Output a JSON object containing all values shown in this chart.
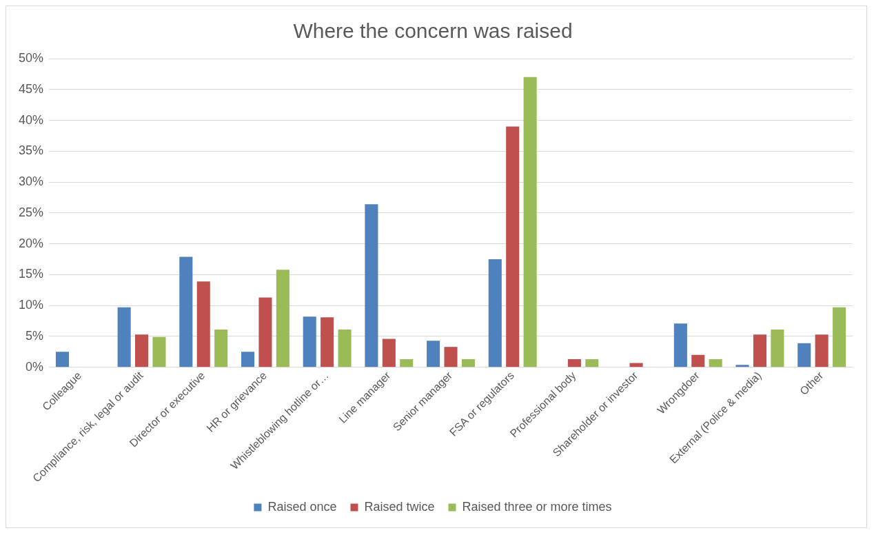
{
  "chart_data": {
    "type": "bar",
    "title": "Where the concern was raised",
    "categories": [
      "Colleague",
      "Compliance, risk, legal or audit",
      "Director or executive",
      "HR or grievance",
      "Whistleblowing hotline or…",
      "Line manager",
      "Senior manager",
      "FSA or regulators",
      "Professional body",
      "Shareholder or investor",
      "Wrongdoer",
      "External (Police & media)",
      "Other"
    ],
    "series": [
      {
        "name": "Raised once",
        "color": "#4f81bd",
        "values": [
          2.5,
          9.7,
          17.9,
          2.5,
          8.2,
          26.4,
          4.3,
          17.5,
          0,
          0,
          7.1,
          0.4,
          3.9
        ]
      },
      {
        "name": "Raised twice",
        "color": "#c0504d",
        "values": [
          0,
          5.3,
          13.9,
          11.3,
          8.1,
          4.6,
          3.3,
          39.0,
          1.3,
          0.7,
          2.0,
          5.3,
          5.3
        ]
      },
      {
        "name": "Raised three or more times",
        "color": "#9bbb59",
        "values": [
          0,
          4.9,
          6.1,
          15.8,
          6.1,
          1.3,
          1.3,
          47.0,
          1.3,
          0,
          1.3,
          6.1,
          9.7
        ]
      }
    ],
    "ylim": [
      0,
      50
    ],
    "yticks": [
      {
        "value": 0,
        "label": "0%"
      },
      {
        "value": 5,
        "label": "5%"
      },
      {
        "value": 10,
        "label": "10%"
      },
      {
        "value": 15,
        "label": "15%"
      },
      {
        "value": 20,
        "label": "20%"
      },
      {
        "value": 25,
        "label": "25%"
      },
      {
        "value": 30,
        "label": "30%"
      },
      {
        "value": 35,
        "label": "35%"
      },
      {
        "value": 40,
        "label": "40%"
      },
      {
        "value": 45,
        "label": "45%"
      },
      {
        "value": 50,
        "label": "50%"
      }
    ],
    "grid": "y",
    "legend": "bottom"
  }
}
